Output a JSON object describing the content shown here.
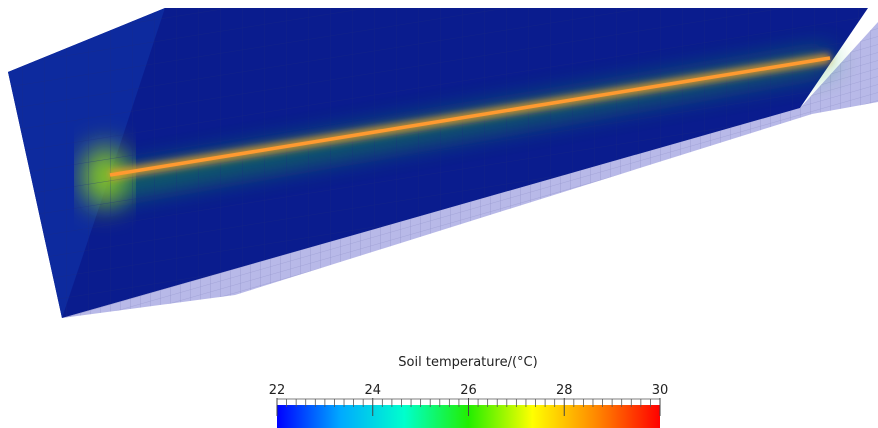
{
  "colorbar": {
    "title": "Soil temperature/(°C)",
    "range": [
      22,
      30
    ],
    "ticks": [
      22,
      24,
      26,
      28,
      30
    ],
    "colors": [
      "#0000ff",
      "#00aaff",
      "#00ffcc",
      "#22ee00",
      "#ffff00",
      "#ff8800",
      "#ff0000"
    ]
  }
}
